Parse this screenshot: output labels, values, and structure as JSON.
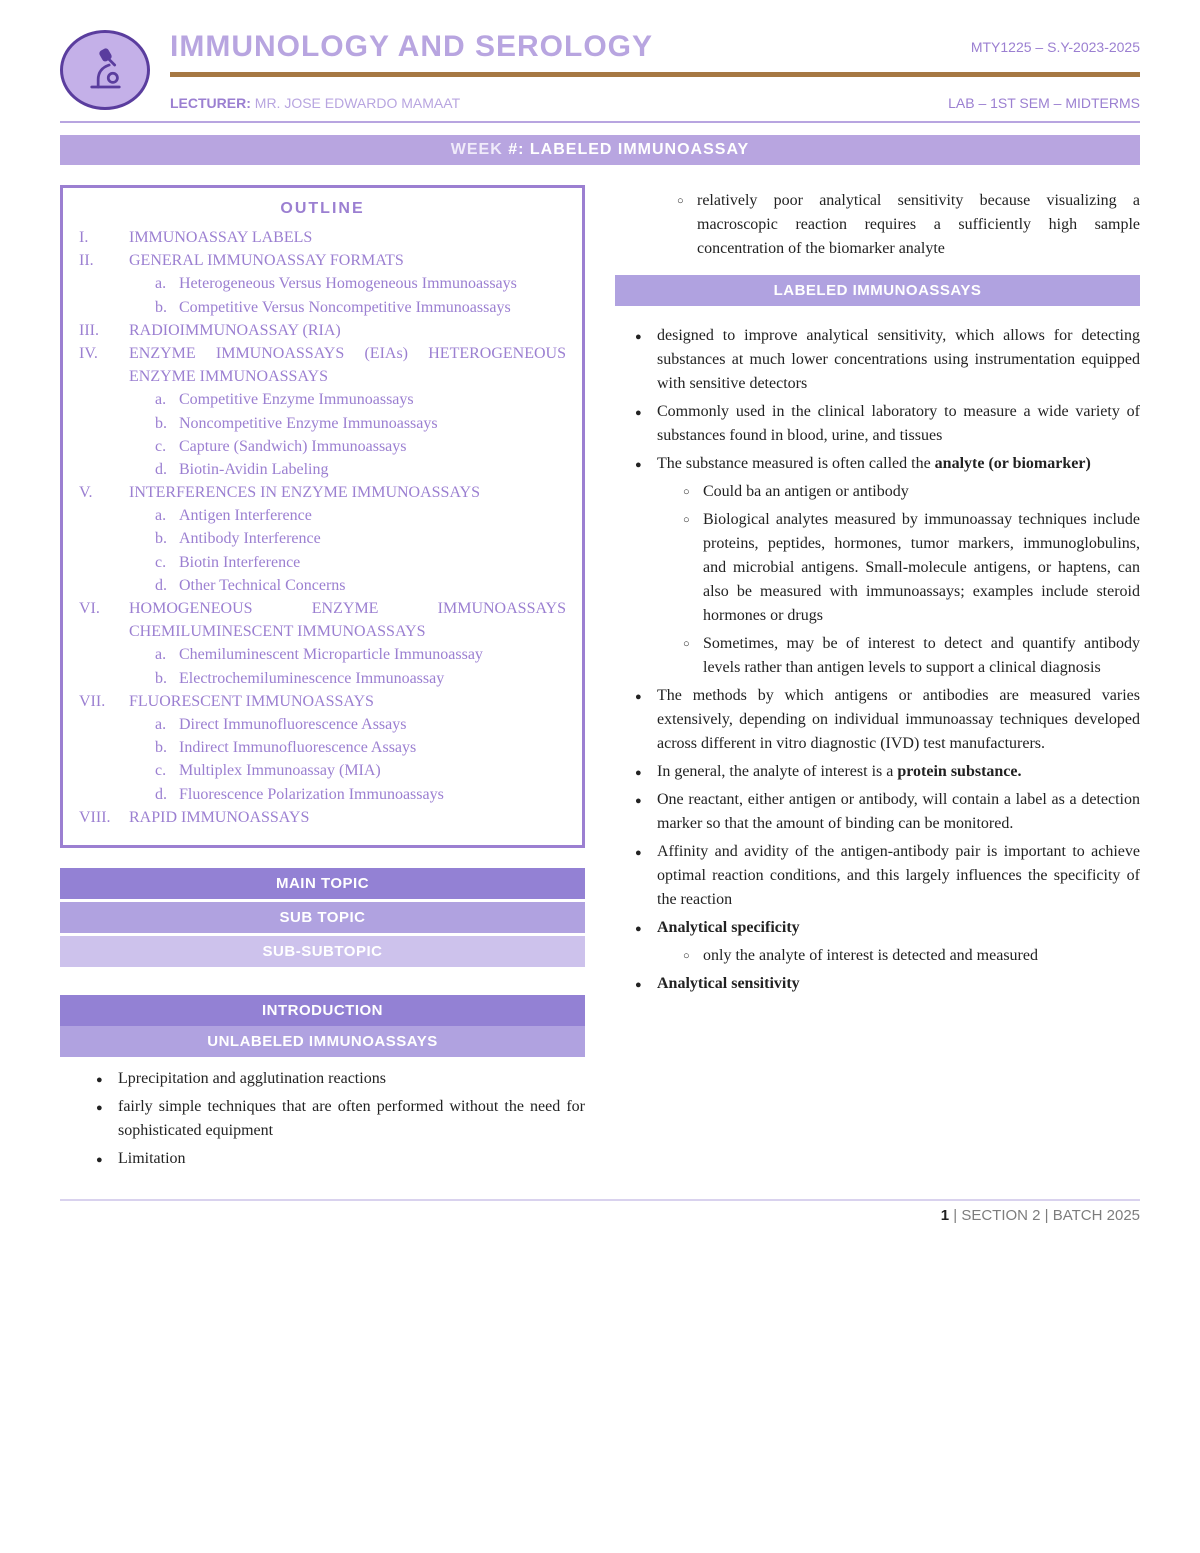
{
  "header": {
    "title": "IMMUNOLOGY AND SEROLOGY",
    "course_code": "MTY1225 – S.Y-2023-2025",
    "lecturer_label": "LECTURER:",
    "lecturer_name": "MR. JOSE EDWARDO MAMAAT",
    "lab_info": "LAB – 1ST SEM – MIDTERMS"
  },
  "banner": {
    "week": "WEEK",
    "rest": " #: LABELED IMMUNOASSAY"
  },
  "outline": {
    "title": "OUTLINE",
    "items": [
      {
        "num": "I.",
        "title": "IMMUNOASSAY LABELS",
        "subs": []
      },
      {
        "num": "II.",
        "title": "GENERAL IMMUNOASSAY FORMATS",
        "subs": [
          {
            "l": "a.",
            "t": "Heterogeneous Versus Homogeneous Immunoassays"
          },
          {
            "l": "b.",
            "t": "Competitive Versus Noncompetitive Immunoassays"
          }
        ]
      },
      {
        "num": "III.",
        "title": "RADIOIMMUNOASSAY (RIA)",
        "subs": []
      },
      {
        "num": "IV.",
        "title": "ENZYME IMMUNOASSAYS (EIAs) HETEROGENEOUS ENZYME IMMUNOASSAYS",
        "subs": [
          {
            "l": "a.",
            "t": "Competitive Enzyme Immunoassays"
          },
          {
            "l": "b.",
            "t": "Noncompetitive Enzyme Immunoassays"
          },
          {
            "l": "c.",
            "t": "Capture (Sandwich) Immunoassays"
          },
          {
            "l": "d.",
            "t": "Biotin-Avidin Labeling"
          }
        ]
      },
      {
        "num": "V.",
        "title": "INTERFERENCES IN ENZYME IMMUNOASSAYS",
        "subs": [
          {
            "l": "a.",
            "t": "Antigen Interference"
          },
          {
            "l": "b.",
            "t": "Antibody Interference"
          },
          {
            "l": "c.",
            "t": "Biotin Interference"
          },
          {
            "l": "d.",
            "t": "Other Technical Concerns"
          }
        ]
      },
      {
        "num": "VI.",
        "title": "HOMOGENEOUS ENZYME IMMUNOASSAYS CHEMILUMINESCENT IMMUNOASSAYS",
        "subs": [
          {
            "l": "a.",
            "t": "Chemiluminescent Microparticle Immunoassay"
          },
          {
            "l": "b.",
            "t": "Electrochemiluminescence Immunoassay"
          }
        ]
      },
      {
        "num": "VII.",
        "title": "FLUORESCENT IMMUNOASSAYS",
        "subs": [
          {
            "l": "a.",
            "t": "Direct Immunofluorescence Assays"
          },
          {
            "l": "b.",
            "t": "Indirect Immunofluorescence Assays"
          },
          {
            "l": "c.",
            "t": "Multiplex Immunoassay (MIA)"
          },
          {
            "l": "d.",
            "t": "Fluorescence Polarization Immunoassays"
          }
        ]
      },
      {
        "num": "VIII.",
        "title": "RAPID IMMUNOASSAYS",
        "subs": []
      }
    ]
  },
  "topic_bars": {
    "main": "MAIN TOPIC",
    "sub": "SUB TOPIC",
    "subsub": "SUB-SUBTOPIC"
  },
  "left_sections": {
    "intro": "INTRODUCTION",
    "unlabeled": "UNLABELED IMMUNOASSAYS",
    "bullets": [
      "Lprecipitation and agglutination reactions",
      " fairly simple techniques that are often performed without the need for sophisticated equipment",
      "Limitation"
    ]
  },
  "right_top_sub": [
    "relatively poor analytical sensitivity because visualizing a macroscopic reaction requires a sufficiently high sample concentration of the biomarker analyte"
  ],
  "labeled_bar": "LABELED IMMUNOASSAYS",
  "labeled_bullets": [
    {
      "t": "designed to improve analytical sensitivity, which allows for detecting substances at much lower concentrations using instrumentation equipped with sensitive detectors"
    },
    {
      "t": "Commonly used in the clinical laboratory to measure a wide variety of substances found in blood, urine, and tissues"
    },
    {
      "t": "The substance measured is often called the ",
      "bold": "analyte (or biomarker)",
      "subs": [
        "Could ba an antigen or antibody",
        "Biological analytes measured by immunoassay techniques include proteins, peptides, hormones, tumor markers, immunoglobulins, and microbial antigens. Small-molecule antigens, or haptens, can also be measured with immunoassays; examples include steroid hormones or drugs",
        "Sometimes, may be of interest to detect and quantify antibody levels rather than antigen levels to support a clinical diagnosis"
      ]
    },
    {
      "t": "The methods by which antigens or antibodies are measured varies extensively, depending on individual immunoassay techniques developed across different in vitro diagnostic (IVD) test manufacturers."
    },
    {
      "t": "In general, the analyte of interest is a ",
      "bold": "protein substance."
    },
    {
      "t": "One reactant, either antigen or antibody, will contain a label as a detection marker so that the amount of binding can be monitored."
    },
    {
      "t": "Affinity and avidity of the antigen-antibody pair is important to achieve optimal reaction conditions, and this largely influences the specificity of the reaction"
    },
    {
      "bold_first": "Analytical specificity",
      "subs": [
        "only the analyte of interest is detected and measured"
      ]
    },
    {
      "bold_first": "Analytical sensitivity"
    }
  ],
  "footer": {
    "page": "1",
    "rest": " | SECTION 2 | BATCH 2025"
  },
  "colors": {
    "purple_dark": "#9381d4",
    "purple_med": "#b0a2e0",
    "purple_light": "#cdc2ec",
    "outline_border": "#9b7fd1",
    "brown": "#a67843"
  }
}
